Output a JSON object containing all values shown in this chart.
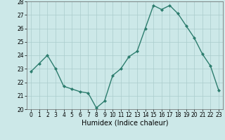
{
  "x": [
    0,
    1,
    2,
    3,
    4,
    5,
    6,
    7,
    8,
    9,
    10,
    11,
    12,
    13,
    14,
    15,
    16,
    17,
    18,
    19,
    20,
    21,
    22,
    23
  ],
  "y": [
    22.8,
    23.4,
    24.0,
    23.0,
    21.7,
    21.5,
    21.3,
    21.2,
    20.1,
    20.6,
    22.5,
    23.0,
    23.9,
    24.3,
    26.0,
    27.7,
    27.4,
    27.7,
    27.1,
    26.2,
    25.3,
    24.1,
    23.2,
    21.4
  ],
  "line_color": "#2d7d6e",
  "marker": "D",
  "marker_size": 2.0,
  "bg_color": "#cce8e8",
  "grid_color": "#aacccc",
  "xlabel": "Humidex (Indice chaleur)",
  "ylim": [
    20,
    28
  ],
  "xlim": [
    -0.5,
    23.5
  ],
  "yticks": [
    20,
    21,
    22,
    23,
    24,
    25,
    26,
    27,
    28
  ],
  "xticks": [
    0,
    1,
    2,
    3,
    4,
    5,
    6,
    7,
    8,
    9,
    10,
    11,
    12,
    13,
    14,
    15,
    16,
    17,
    18,
    19,
    20,
    21,
    22,
    23
  ],
  "tick_fontsize": 5.5,
  "xlabel_fontsize": 7.0,
  "linewidth": 1.0
}
